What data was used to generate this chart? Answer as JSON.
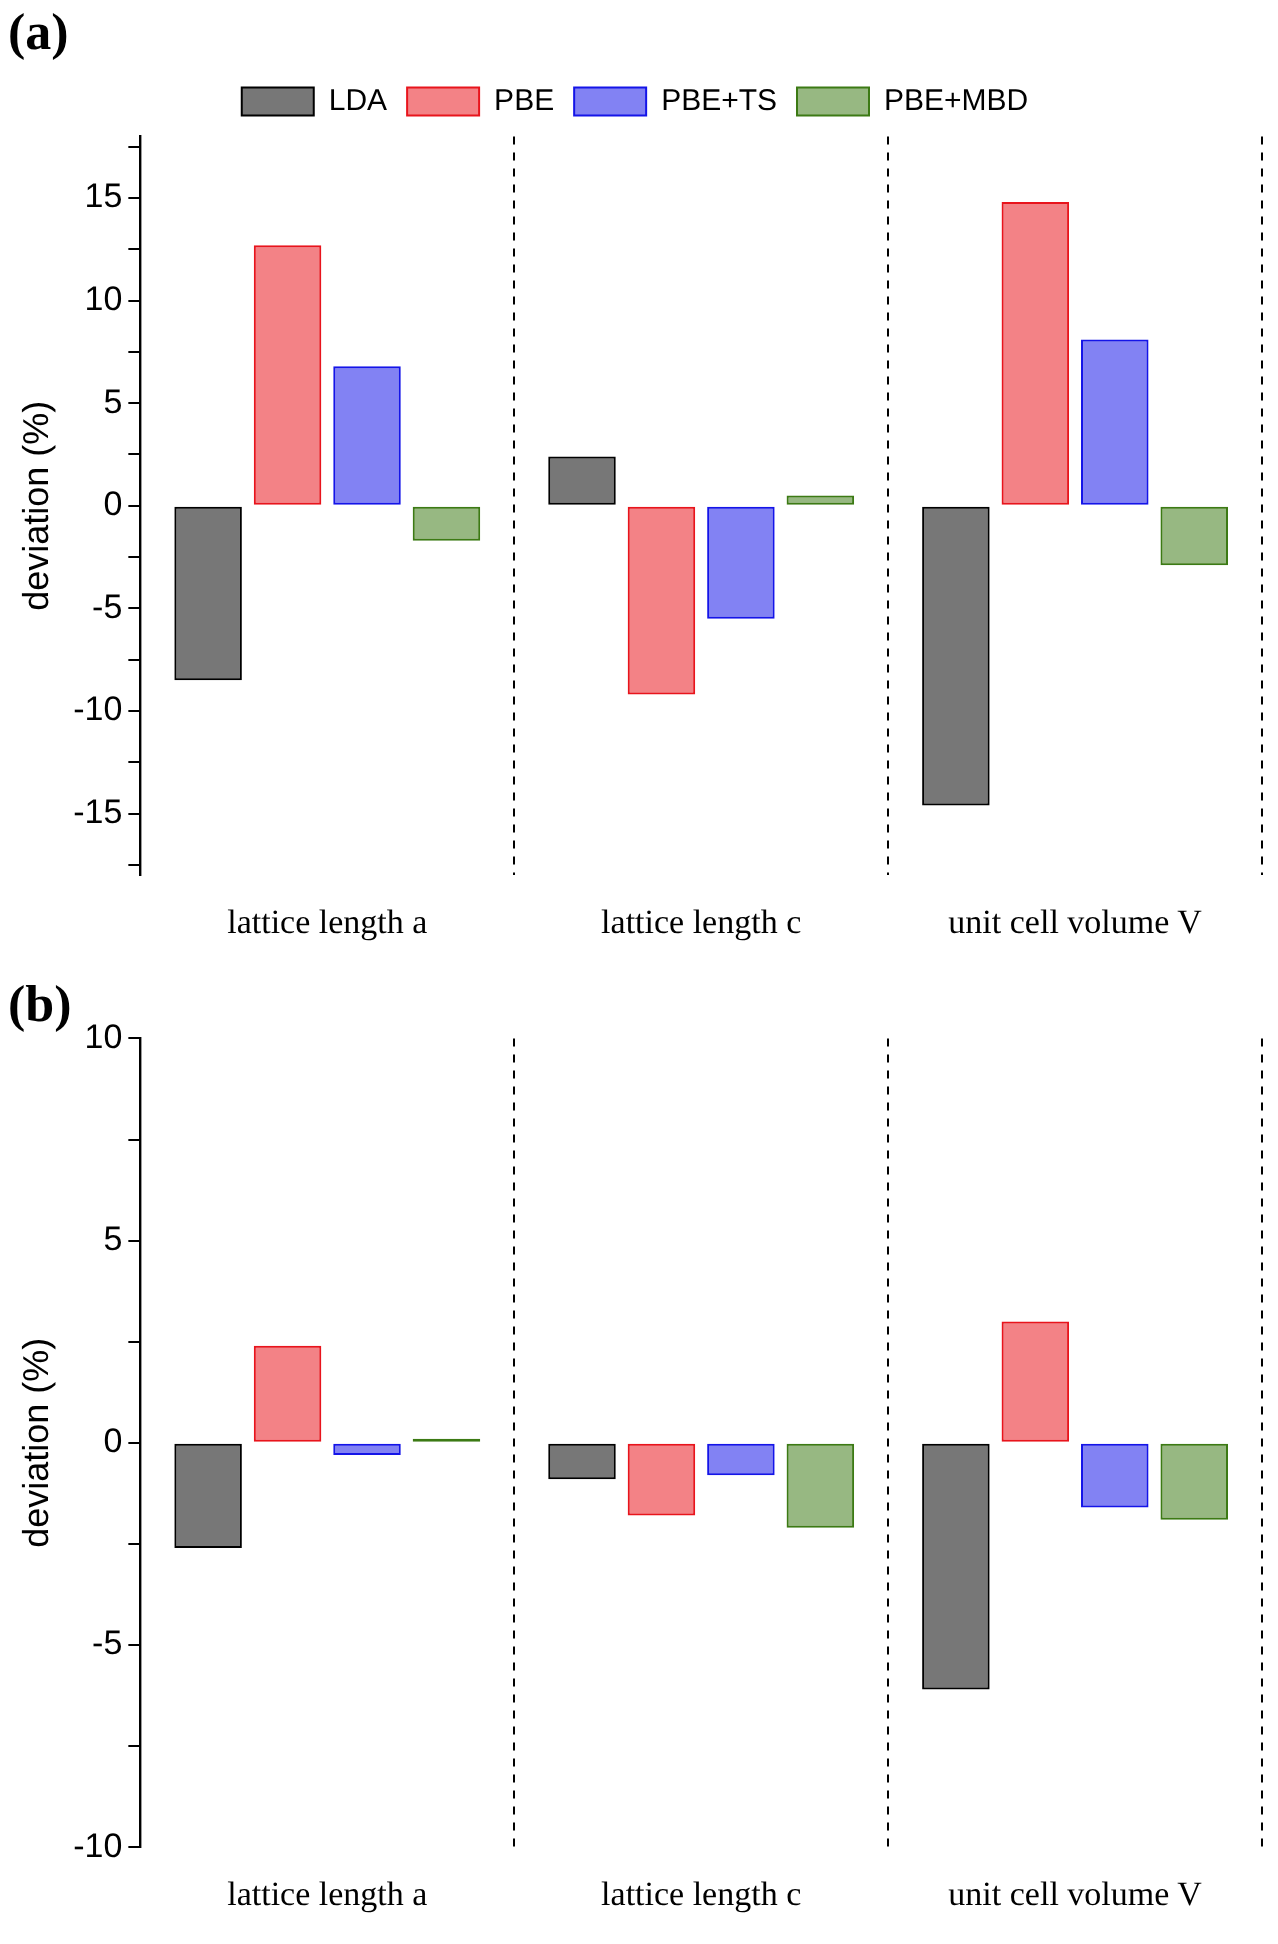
{
  "chart_data": [
    {
      "type": "bar",
      "title": "(a)",
      "ylabel": "deviation (%)",
      "categories": [
        "lattice length a",
        "lattice length c",
        "unit cell volume V"
      ],
      "series": [
        {
          "name": "LDA",
          "color": "#000000",
          "values": [
            -8.5,
            2.4,
            -14.6
          ]
        },
        {
          "name": "PBE",
          "color": "#e8141c",
          "values": [
            12.7,
            -9.2,
            14.8
          ]
        },
        {
          "name": "PBE+TS",
          "color": "#1414e8",
          "values": [
            6.8,
            -5.5,
            8.1
          ]
        },
        {
          "name": "PBE+MBD",
          "color": "#3c7a14",
          "values": [
            -1.7,
            0.5,
            -2.9
          ]
        }
      ],
      "ylim": [
        -18,
        18
      ],
      "yticks": [
        {
          "value": -17.5,
          "label": null
        },
        -15,
        {
          "value": -12.5,
          "label": null
        },
        -10,
        {
          "value": -7.5,
          "label": null
        },
        -5,
        {
          "value": -2.5,
          "label": null
        },
        0,
        {
          "value": 2.5,
          "label": null
        },
        5,
        {
          "value": 7.5,
          "label": null
        },
        10,
        {
          "value": 12.5,
          "label": null
        },
        15,
        {
          "value": 17.5,
          "label": null
        }
      ],
      "grid": "x",
      "legend": "top"
    },
    {
      "type": "bar",
      "title": "(b)",
      "ylabel": "deviation (%)",
      "categories": [
        "lattice length a",
        "lattice length c",
        "unit cell volume V"
      ],
      "series": [
        {
          "color": "#000000",
          "values": [
            -2.6,
            -0.9,
            -6.1
          ]
        },
        {
          "color": "#e8141c",
          "values": [
            2.4,
            -1.8,
            3.0
          ]
        },
        {
          "color": "#1414e8",
          "values": [
            -0.3,
            -0.8,
            -1.6
          ]
        },
        {
          "color": "#3c7a14",
          "values": [
            0.1,
            -2.1,
            -1.9
          ]
        }
      ],
      "ylim": [
        -10,
        10
      ],
      "yticks": [
        -10,
        {
          "value": -7.5,
          "label": null
        },
        -5,
        {
          "value": -2.5,
          "label": null
        },
        0,
        {
          "value": 2.5,
          "label": null
        },
        5,
        {
          "value": 7.5,
          "label": null
        },
        10
      ],
      "grid": "x"
    }
  ]
}
